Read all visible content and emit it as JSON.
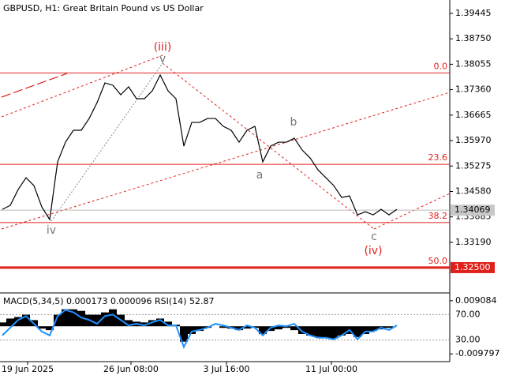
{
  "chart_data": [
    {
      "type": "line",
      "title": "GBPUSD, H1:  Great Britain Pound vs US Dollar",
      "x": [
        0,
        1,
        2,
        3,
        4,
        5,
        6,
        7,
        8,
        9,
        10,
        11,
        12,
        13,
        14,
        15,
        16,
        17,
        18,
        19,
        20,
        21,
        22,
        23,
        24,
        25,
        26,
        27,
        28,
        29,
        30,
        31,
        32,
        33,
        34,
        35,
        36,
        37,
        38,
        39,
        40,
        41,
        42,
        43,
        44,
        45,
        46,
        47,
        48,
        49,
        50
      ],
      "values": [
        1.34092,
        1.342,
        1.34632,
        1.34956,
        1.3474,
        1.34157,
        1.33812,
        1.35387,
        1.35927,
        1.36251,
        1.36251,
        1.36574,
        1.37006,
        1.37546,
        1.37481,
        1.37222,
        1.37438,
        1.37114,
        1.37114,
        1.3733,
        1.37761,
        1.3733,
        1.37114,
        1.35819,
        1.36466,
        1.36466,
        1.36574,
        1.36574,
        1.36359,
        1.36251,
        1.35927,
        1.36251,
        1.36359,
        1.35387,
        1.35819,
        1.35927,
        1.35927,
        1.36035,
        1.35711,
        1.35495,
        1.35171,
        1.34956,
        1.3474,
        1.34416,
        1.34459,
        1.33941,
        1.34027,
        1.33941,
        1.34092,
        1.33941,
        1.34092
      ],
      "color": "#000000",
      "xlim": [
        -0.3,
        56.7
      ],
      "xticks": [
        {
          "value": 3.2,
          "label": "19 Jun 2025"
        },
        {
          "value": 16.3,
          "label": "26 Jun 08:00"
        },
        {
          "value": 28.4,
          "label": "3 Jul 16:00"
        },
        {
          "value": 41.7,
          "label": "11 Jul 00:00"
        }
      ],
      "ylim": [
        1.3183,
        1.3981
      ],
      "yticks": [
        1.39445,
        {
          "value": 1.3875,
          "label": "1.38750"
        },
        1.38055,
        {
          "value": 1.3736,
          "label": "1.37360"
        },
        1.36665,
        {
          "value": 1.3597,
          "label": "1.35970"
        },
        1.35275,
        {
          "value": 1.3458,
          "label": "1.34580"
        },
        1.33885,
        {
          "value": 1.3319,
          "label": "1.33190"
        }
      ],
      "last_price": 1.34069,
      "levels_color": "#e0201b",
      "levels": [
        {
          "value": 1.37818,
          "label": "0.0"
        },
        {
          "value": 1.3532,
          "label": "23.6"
        },
        {
          "value": 1.3373,
          "label": "38.2"
        },
        {
          "value": 1.325,
          "label": "50.0",
          "tag": "1.32500"
        }
      ],
      "annotations": [
        {
          "text": "(iii)",
          "x": 20.3,
          "y": 1.38517,
          "color": "#e0201b"
        },
        {
          "text": "v",
          "x": 20.3,
          "y": 1.38193,
          "color": "#777777"
        },
        {
          "text": "iv",
          "x": 6.2,
          "y": 1.33509,
          "color": "#777777"
        },
        {
          "text": "a",
          "x": 32.6,
          "y": 1.3502,
          "color": "#777777"
        },
        {
          "text": "b",
          "x": 36.9,
          "y": 1.36466,
          "color": "#777777"
        },
        {
          "text": "c",
          "x": 47.1,
          "y": 1.33337,
          "color": "#777777"
        },
        {
          "text": "(iv)",
          "x": 47.0,
          "y": 1.32948,
          "color": "#e0201b"
        }
      ]
    },
    {
      "type": "macd",
      "title": "MACD(5,34,5) 0.000173 0.000096 RSI(14) 52.87",
      "values": [
        0.00137,
        0.00274,
        0.00328,
        0.0041,
        0.00219,
        -0.00082,
        -0.00137,
        0.0041,
        0.00602,
        0.00602,
        0.00547,
        0.0041,
        0.0041,
        0.00492,
        0.00602,
        0.0041,
        0.00219,
        0.00164,
        0.00137,
        0.00219,
        0.00274,
        0.00164,
        0.00055,
        -0.00547,
        -0.00274,
        -0.00164,
        -0.00055,
        0,
        -0.00055,
        -0.00082,
        -0.00137,
        -0.00082,
        -0.00055,
        -0.00274,
        -0.00164,
        -0.00109,
        -0.00055,
        -0.00137,
        -0.00274,
        -0.00328,
        -0.00383,
        -0.0041,
        -0.00438,
        -0.00328,
        -0.00274,
        -0.00383,
        -0.00274,
        -0.00164,
        -0.00109,
        -0.00055,
        0
      ],
      "color": "#000000",
      "ylim": [
        -0.01226,
        0.01127
      ],
      "yticks": [
        0.009084,
        -0.009797
      ],
      "series": [
        {
          "name": "RSI(14)",
          "axis": "y2",
          "color": "#1e90ff",
          "values": [
            37.3,
            49.4,
            61.5,
            67.6,
            55.5,
            43.3,
            37.3,
            67.6,
            77.3,
            73.6,
            65.2,
            61.5,
            55.5,
            67.6,
            70,
            61.5,
            53.0,
            55.5,
            53.0,
            57.9,
            61.5,
            53.0,
            53.0,
            19.1,
            43.3,
            45.8,
            49.4,
            55.5,
            53.0,
            49.4,
            45.8,
            53.0,
            49.4,
            37.3,
            49.4,
            53.0,
            51.8,
            55.5,
            43.3,
            37.3,
            33.6,
            33.6,
            31.2,
            37.3,
            45.8,
            31.2,
            43.3,
            43.3,
            49.4,
            45.8,
            53.0
          ]
        }
      ],
      "y2lim": [
        -2.7,
        101.5
      ],
      "y2ticks": [
        {
          "value": 70,
          "label": "70.00"
        },
        {
          "value": 30,
          "label": "30.00"
        }
      ]
    }
  ]
}
